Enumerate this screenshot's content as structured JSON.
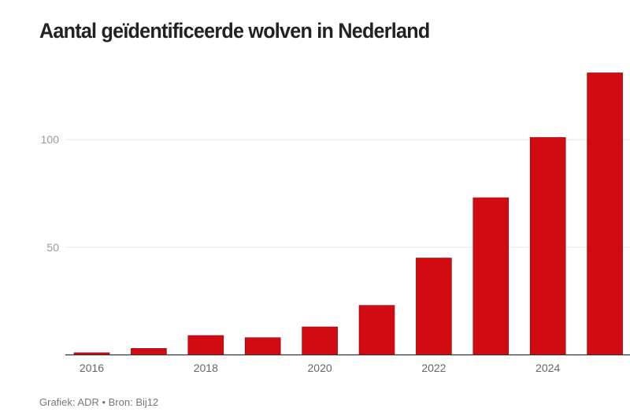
{
  "chart_data": {
    "type": "bar",
    "title": "Aantal geïdentificeerde wolven in Nederland",
    "categories": [
      "2016",
      "2017",
      "2018",
      "2019",
      "2020",
      "2021",
      "2022",
      "2023",
      "2024",
      "2025"
    ],
    "values": [
      1,
      3,
      9,
      8,
      13,
      23,
      45,
      73,
      101,
      131
    ],
    "x_tick_labels": [
      "2016",
      "2018",
      "2020",
      "2022",
      "2024"
    ],
    "y_ticks": [
      50,
      100
    ],
    "ylim": [
      0,
      135
    ],
    "xlabel": "",
    "ylabel": "",
    "grid": true,
    "bar_color": "#d20a11",
    "footer": "Grafiek: ADR • Bron: Bij12"
  }
}
